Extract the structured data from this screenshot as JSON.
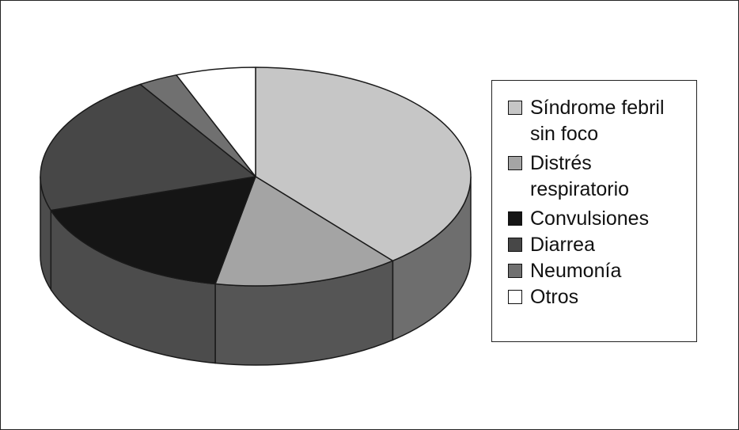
{
  "chart_data": {
    "type": "pie",
    "style": "3d",
    "series": [
      {
        "name": "Síndrome febril\nsin foco",
        "value": 39,
        "color": "#c6c6c6",
        "side_color": "#6e6e6e"
      },
      {
        "name": "Distrés\nrespiratorio",
        "value": 14,
        "color": "#a4a4a4",
        "side_color": "#555555"
      },
      {
        "name": "Convulsiones",
        "value": 17,
        "color": "#151515",
        "side_color": "#4c4c4c"
      },
      {
        "name": "Diarrea",
        "value": 21,
        "color": "#474747",
        "side_color": "#4c4c4c"
      },
      {
        "name": "Neumonía",
        "value": 3,
        "color": "#707070",
        "side_color": "#4c4c4c"
      },
      {
        "name": "Otros",
        "value": 6,
        "color": "#ffffff",
        "side_color": "#4c4c4c"
      }
    ],
    "legend_position": "right"
  }
}
